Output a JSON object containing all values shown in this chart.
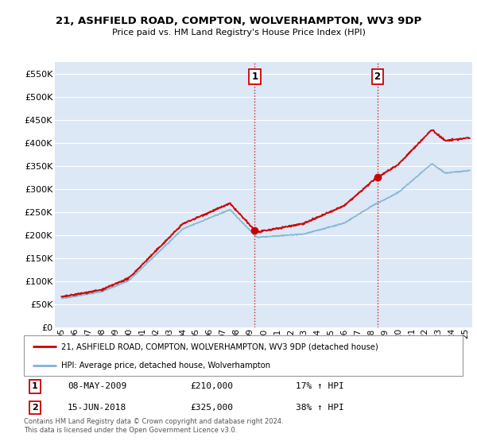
{
  "title_line1": "21, ASHFIELD ROAD, COMPTON, WOLVERHAMPTON, WV3 9DP",
  "title_line2": "Price paid vs. HM Land Registry's House Price Index (HPI)",
  "background_color": "#ffffff",
  "plot_bg_color": "#dce8f5",
  "grid_color": "#ffffff",
  "ylabel_ticks": [
    "£0",
    "£50K",
    "£100K",
    "£150K",
    "£200K",
    "£250K",
    "£300K",
    "£350K",
    "£400K",
    "£450K",
    "£500K",
    "£550K"
  ],
  "ytick_values": [
    0,
    50000,
    100000,
    150000,
    200000,
    250000,
    300000,
    350000,
    400000,
    450000,
    500000,
    550000
  ],
  "ylim": [
    0,
    575000
  ],
  "xlim_start": 1994.5,
  "xlim_end": 2025.5,
  "sale1_x": 2009.35,
  "sale1_y": 210000,
  "sale2_x": 2018.45,
  "sale2_y": 325000,
  "sale1_label": "1",
  "sale2_label": "2",
  "sale1_date": "08-MAY-2009",
  "sale1_price": "£210,000",
  "sale1_hpi": "17% ↑ HPI",
  "sale2_date": "15-JUN-2018",
  "sale2_price": "£325,000",
  "sale2_hpi": "38% ↑ HPI",
  "property_line_color": "#cc0000",
  "hpi_line_color": "#7fb3d3",
  "vline_color": "#cc0000",
  "legend_property_label": "21, ASHFIELD ROAD, COMPTON, WOLVERHAMPTON, WV3 9DP (detached house)",
  "legend_hpi_label": "HPI: Average price, detached house, Wolverhampton",
  "footnote": "Contains HM Land Registry data © Crown copyright and database right 2024.\nThis data is licensed under the Open Government Licence v3.0."
}
